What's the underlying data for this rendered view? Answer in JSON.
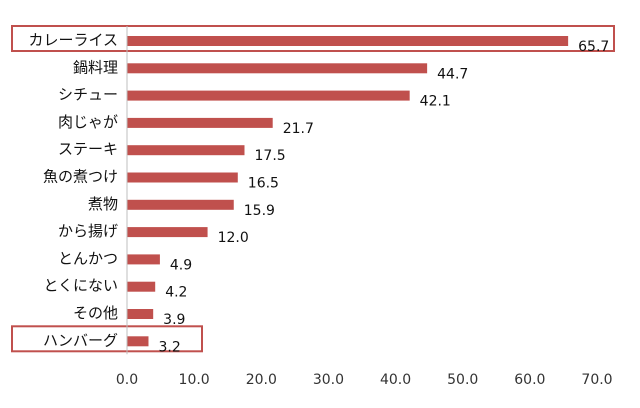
{
  "chart_data": {
    "type": "bar",
    "orientation": "horizontal",
    "categories": [
      "カレーライス",
      "鍋料理",
      "シチュー",
      "肉じゃが",
      "ステーキ",
      "魚の煮つけ",
      "煮物",
      "から揚げ",
      "とんかつ",
      "とくにない",
      "その他",
      "ハンバーグ"
    ],
    "values": [
      65.7,
      44.7,
      42.1,
      21.7,
      17.5,
      16.5,
      15.9,
      12.0,
      4.9,
      4.2,
      3.9,
      3.2
    ],
    "value_labels": [
      "65.7",
      "44.7",
      "42.1",
      "21.7",
      "17.5",
      "16.5",
      "15.9",
      "12.0",
      "4.9",
      "4.2",
      "3.9",
      "3.2"
    ],
    "xlim": [
      0,
      70
    ],
    "xticks": [
      "0.0",
      "10.0",
      "20.0",
      "30.0",
      "40.0",
      "50.0",
      "60.0",
      "70.0"
    ],
    "highlighted": [
      "カレーライス",
      "ハンバーグ"
    ],
    "grid": false,
    "legend": "none",
    "bar_color": "#c0504d",
    "highlight_color": "#c0504d"
  }
}
